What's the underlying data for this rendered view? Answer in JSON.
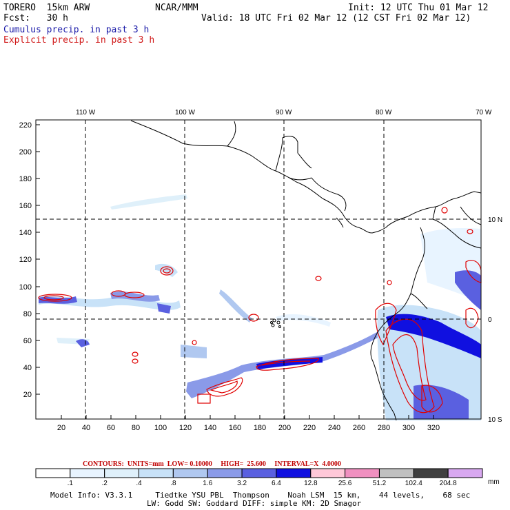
{
  "header": {
    "model": "TORERO  15km ARW",
    "center": "NCAR/MMM",
    "init": "Init: 12 UTC Thu 01 Mar 12",
    "fcst": "Fcst:   30 h",
    "valid": "Valid: 18 UTC Fri 02 Mar 12 (12 CST Fri 02 Mar 12)",
    "field1": "Cumulus precip. in past 3 h",
    "field2": "Explicit precip. in past 3 h"
  },
  "colors": {
    "field1": "#1a1aa8",
    "field2": "#d01818",
    "contour": "#e00000",
    "coast": "#000000"
  },
  "map": {
    "lon_labels": [
      "110 W",
      "100 W",
      "90 W",
      "80 W",
      "70 W"
    ],
    "lat_labels": [
      "10 N",
      "0",
      "10 S"
    ],
    "y_ticks": [
      "220",
      "200",
      "180",
      "160",
      "140",
      "120",
      "100",
      "80",
      "60",
      "40",
      "20"
    ],
    "x_ticks": [
      "20",
      "40",
      "60",
      "80",
      "100",
      "120",
      "140",
      "160",
      "180",
      "200",
      "220",
      "240",
      "260",
      "280",
      "300",
      "320"
    ]
  },
  "colorbar": {
    "note": "CONTOURS:  UNITS=mm  LOW= 0.10000     HIGH=  25.600     INTERVAL=X  4.0000",
    "levels": [
      ".1",
      ".2",
      ".4",
      ".8",
      "1.6",
      "3.2",
      "6.4",
      "12.8",
      "25.6",
      "51.2",
      "102.4",
      "204.8"
    ],
    "colors": [
      "#ffffff",
      "#e8f4ff",
      "#dff0fa",
      "#c8e2f8",
      "#b0c8f0",
      "#8a9ae8",
      "#5a60e0",
      "#1010e0",
      "#ffc8d8",
      "#f090c0",
      "#c0c0c0",
      "#404040",
      "#d8a8f0"
    ],
    "units": "mm"
  },
  "footer": {
    "line1": "Model Info: V3.3.1     Tiedtke YSU PBL  Thompson    Noah LSM  15 km,    44 levels,    68 sec",
    "line2": "LW: Godd SW: Goddard DIFF: simple KM: 2D Smagor"
  }
}
